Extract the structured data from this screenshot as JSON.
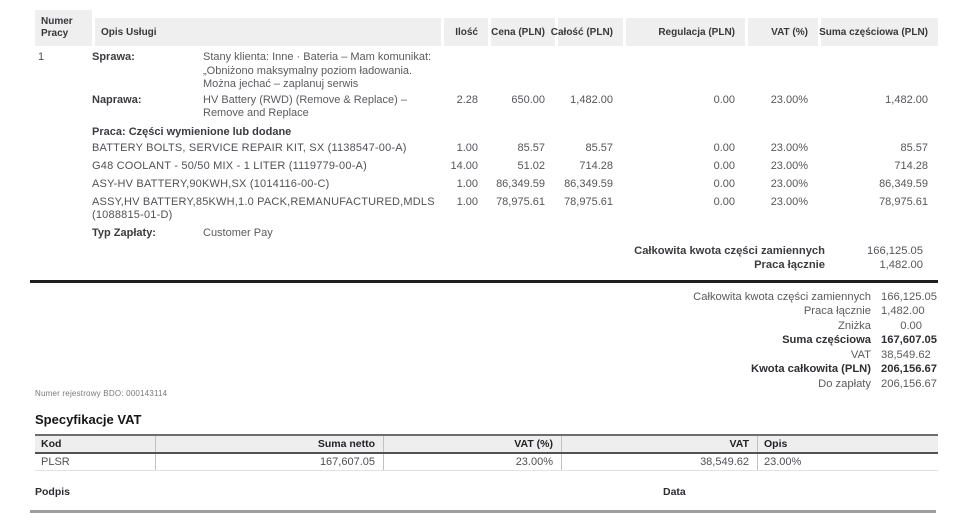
{
  "work_order": {
    "headers": {
      "numer": "Numer Pracy",
      "opis": "Opis Usługi",
      "ilosc": "Ilość",
      "cena": "Cena (PLN)",
      "calosc": "Całość (PLN)",
      "regulacja": "Regulacja (PLN)",
      "vat": "VAT (%)",
      "suma": "Suma częściowa (PLN)"
    },
    "job_number": "1",
    "case": {
      "label": "Sprawa:",
      "text": "Stany klienta: Inne · Bateria – Mam komunikat: „Obniżono maksymalny poziom ładowania. Można jechać – zaplanuj serwis"
    },
    "repair": {
      "label": "Naprawa:",
      "text": "HV Battery (RWD) (Remove & Replace) – Remove and Replace",
      "qty": "2.28",
      "price": "650.00",
      "total": "1,482.00",
      "adjustment": "0.00",
      "vat": "23.00%",
      "subtotal": "1,482.00"
    },
    "parts_section_label": "Praca: Części wymienione lub dodane",
    "parts": [
      {
        "name": "BATTERY BOLTS, SERVICE REPAIR KIT, SX (1138547-00-A)",
        "qty": "1.00",
        "price": "85.57",
        "total": "85.57",
        "adjustment": "0.00",
        "vat": "23.00%",
        "subtotal": "85.57"
      },
      {
        "name": "G48 COOLANT - 50/50 MIX - 1 LITER (1119779-00-A)",
        "qty": "14.00",
        "price": "51.02",
        "total": "714.28",
        "adjustment": "0.00",
        "vat": "23.00%",
        "subtotal": "714.28"
      },
      {
        "name": "ASY-HV BATTERY,90KWH,SX (1014116-00-C)",
        "qty": "1.00",
        "price": "86,349.59",
        "total": "86,349.59",
        "adjustment": "0.00",
        "vat": "23.00%",
        "subtotal": "86,349.59"
      },
      {
        "name": "ASSY,HV BATTERY,85KWH,1.0 PACK,REMANUFACTURED,MDLS (1088815-01-D)",
        "qty": "1.00",
        "price": "78,975.61",
        "total": "78,975.61",
        "adjustment": "0.00",
        "vat": "23.00%",
        "subtotal": "78,975.61"
      }
    ],
    "payment": {
      "label": "Typ Zapłaty:",
      "value": "Customer Pay"
    },
    "totals": [
      {
        "label": "Całkowita kwota części zamiennych",
        "value": "166,125.05"
      },
      {
        "label": "Praca łącznie",
        "value": "1,482.00"
      }
    ]
  },
  "summary": {
    "rows": [
      {
        "label": "Całkowita kwota części zamiennych",
        "value": "166,125.05",
        "bold": false
      },
      {
        "label": "Praca łącznie",
        "value": "1,482.00",
        "bold": false
      },
      {
        "label": "Zniżka",
        "value": "0.00",
        "bold": false
      },
      {
        "label": "Suma częściowa",
        "value": "167,607.05",
        "bold": true
      },
      {
        "label": "VAT",
        "value": "38,549.62",
        "bold": false
      },
      {
        "label": "Kwota całkowita (PLN)",
        "value": "206,156.67",
        "bold": true
      },
      {
        "label": "Do zapłaty",
        "value": "206,156.67",
        "bold": false
      }
    ]
  },
  "bdo_note": "Numer rejestrowy BDO: 000143114",
  "vat_spec": {
    "title": "Specyfikacje VAT",
    "headers": [
      "Kod",
      "Suma netto",
      "VAT (%)",
      "VAT",
      "Opis"
    ],
    "rows": [
      {
        "kod": "PLSR",
        "suma_netto": "167,607.05",
        "vat_pct": "23.00%",
        "vat": "38,549.62",
        "opis": "23.00%"
      }
    ]
  },
  "footer": {
    "signature_label": "Podpis",
    "date_label": "Data"
  }
}
